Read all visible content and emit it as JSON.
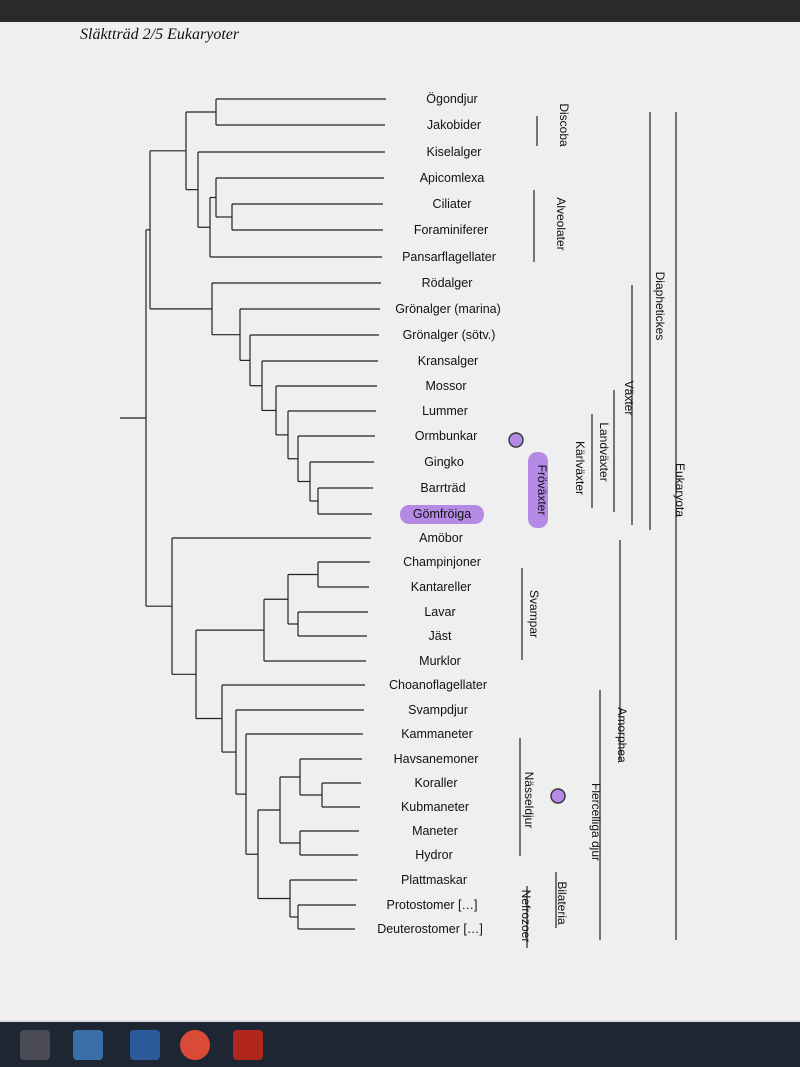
{
  "document": {
    "title": "Släktträd 2/5 Eukaryoter"
  },
  "taxa": [
    "Ögondjur",
    "Jakobider",
    "Kiselalger",
    "Apicomlexa",
    "Ciliater",
    "Foraminiferer",
    "Pansarflagellater",
    "Rödalger",
    "Grönalger (marina)",
    "Grönalger (sötv.)",
    "Kransalger",
    "Mossor",
    "Lummer",
    "Ormbunkar",
    "Gingko",
    "Barrträd",
    "Gömfröiga",
    "Amöbor",
    "Champinjoner",
    "Kantareller",
    "Lavar",
    "Jäst",
    "Murklor",
    "Choanoflagellater",
    "Svampdjur",
    "Kammaneter",
    "Havsanemoner",
    "Koraller",
    "Kubmaneter",
    "Maneter",
    "Hydror",
    "Plattmaskar",
    "Protostomer […]",
    "Deuterostomer […]"
  ],
  "highlighted_taxon": "Gömfröiga",
  "groups": [
    {
      "label": "Discoba"
    },
    {
      "label": "Alveolater"
    },
    {
      "label": "Diaphetickes"
    },
    {
      "label": "Växter"
    },
    {
      "label": "Landväxter"
    },
    {
      "label": "Kärlväxter"
    },
    {
      "label": "Fröväxter",
      "highlight": true
    },
    {
      "label": "Eukaryota"
    },
    {
      "label": "Svampar"
    },
    {
      "label": "Amorphea"
    },
    {
      "label": "Flercelliga djur"
    },
    {
      "label": "Nässeldjur"
    },
    {
      "label": "Bilateria"
    },
    {
      "label": "Nefrozoer"
    }
  ],
  "colors": {
    "highlight": "#b58ae6",
    "line": "#222222",
    "text": "#111111"
  },
  "taskbar": {
    "icons": [
      "store-icon",
      "mail-icon",
      "document-icon",
      "chrome-icon",
      "pdf-icon"
    ]
  }
}
